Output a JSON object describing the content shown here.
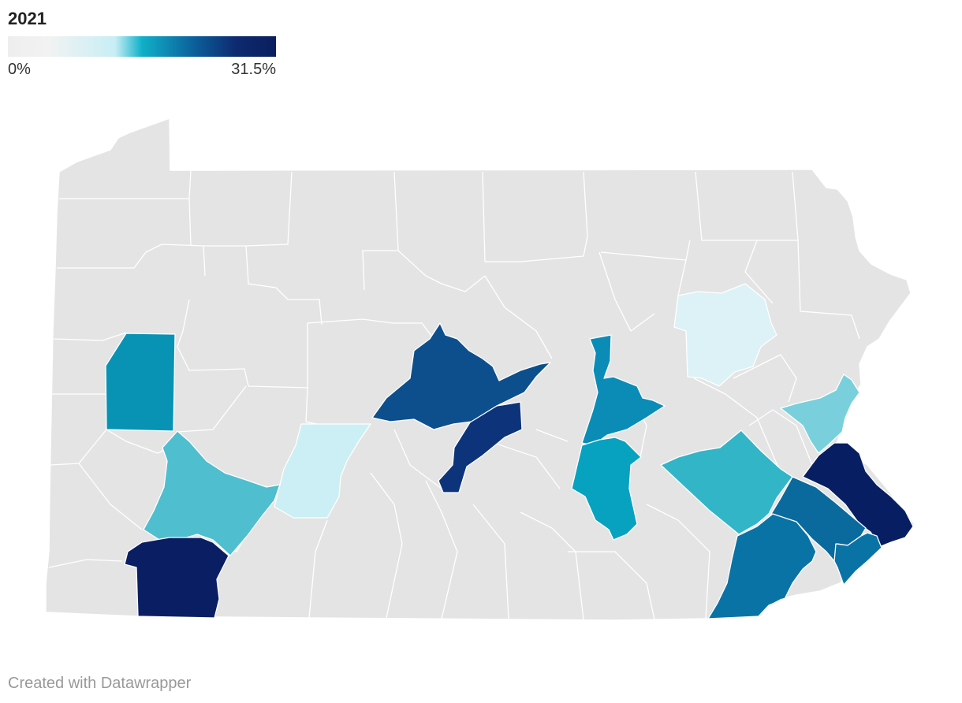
{
  "legend": {
    "title": "2021",
    "min_label": "0%",
    "max_label": "31.5%",
    "gradient": [
      "#eeeeee",
      "#f2f2f2",
      "#c8eef5",
      "#10b0c8",
      "#0b5e9a",
      "#0e2a70",
      "#0a1e5e"
    ]
  },
  "map": {
    "base_color": "#e4e4e4",
    "border_color": "#ffffff",
    "highlighted_colors": [
      "#0893b5",
      "#0d4f8c",
      "#0d347b",
      "#cbeff4",
      "#4fbecf",
      "#0a1f63",
      "#dcf2f7",
      "#0a8cb7",
      "#07a2c0",
      "#33b5c8",
      "#79d0dc",
      "#071f62",
      "#0a6a9d",
      "#0a73a6"
    ]
  },
  "footer": {
    "credit": "Created with Datawrapper"
  }
}
